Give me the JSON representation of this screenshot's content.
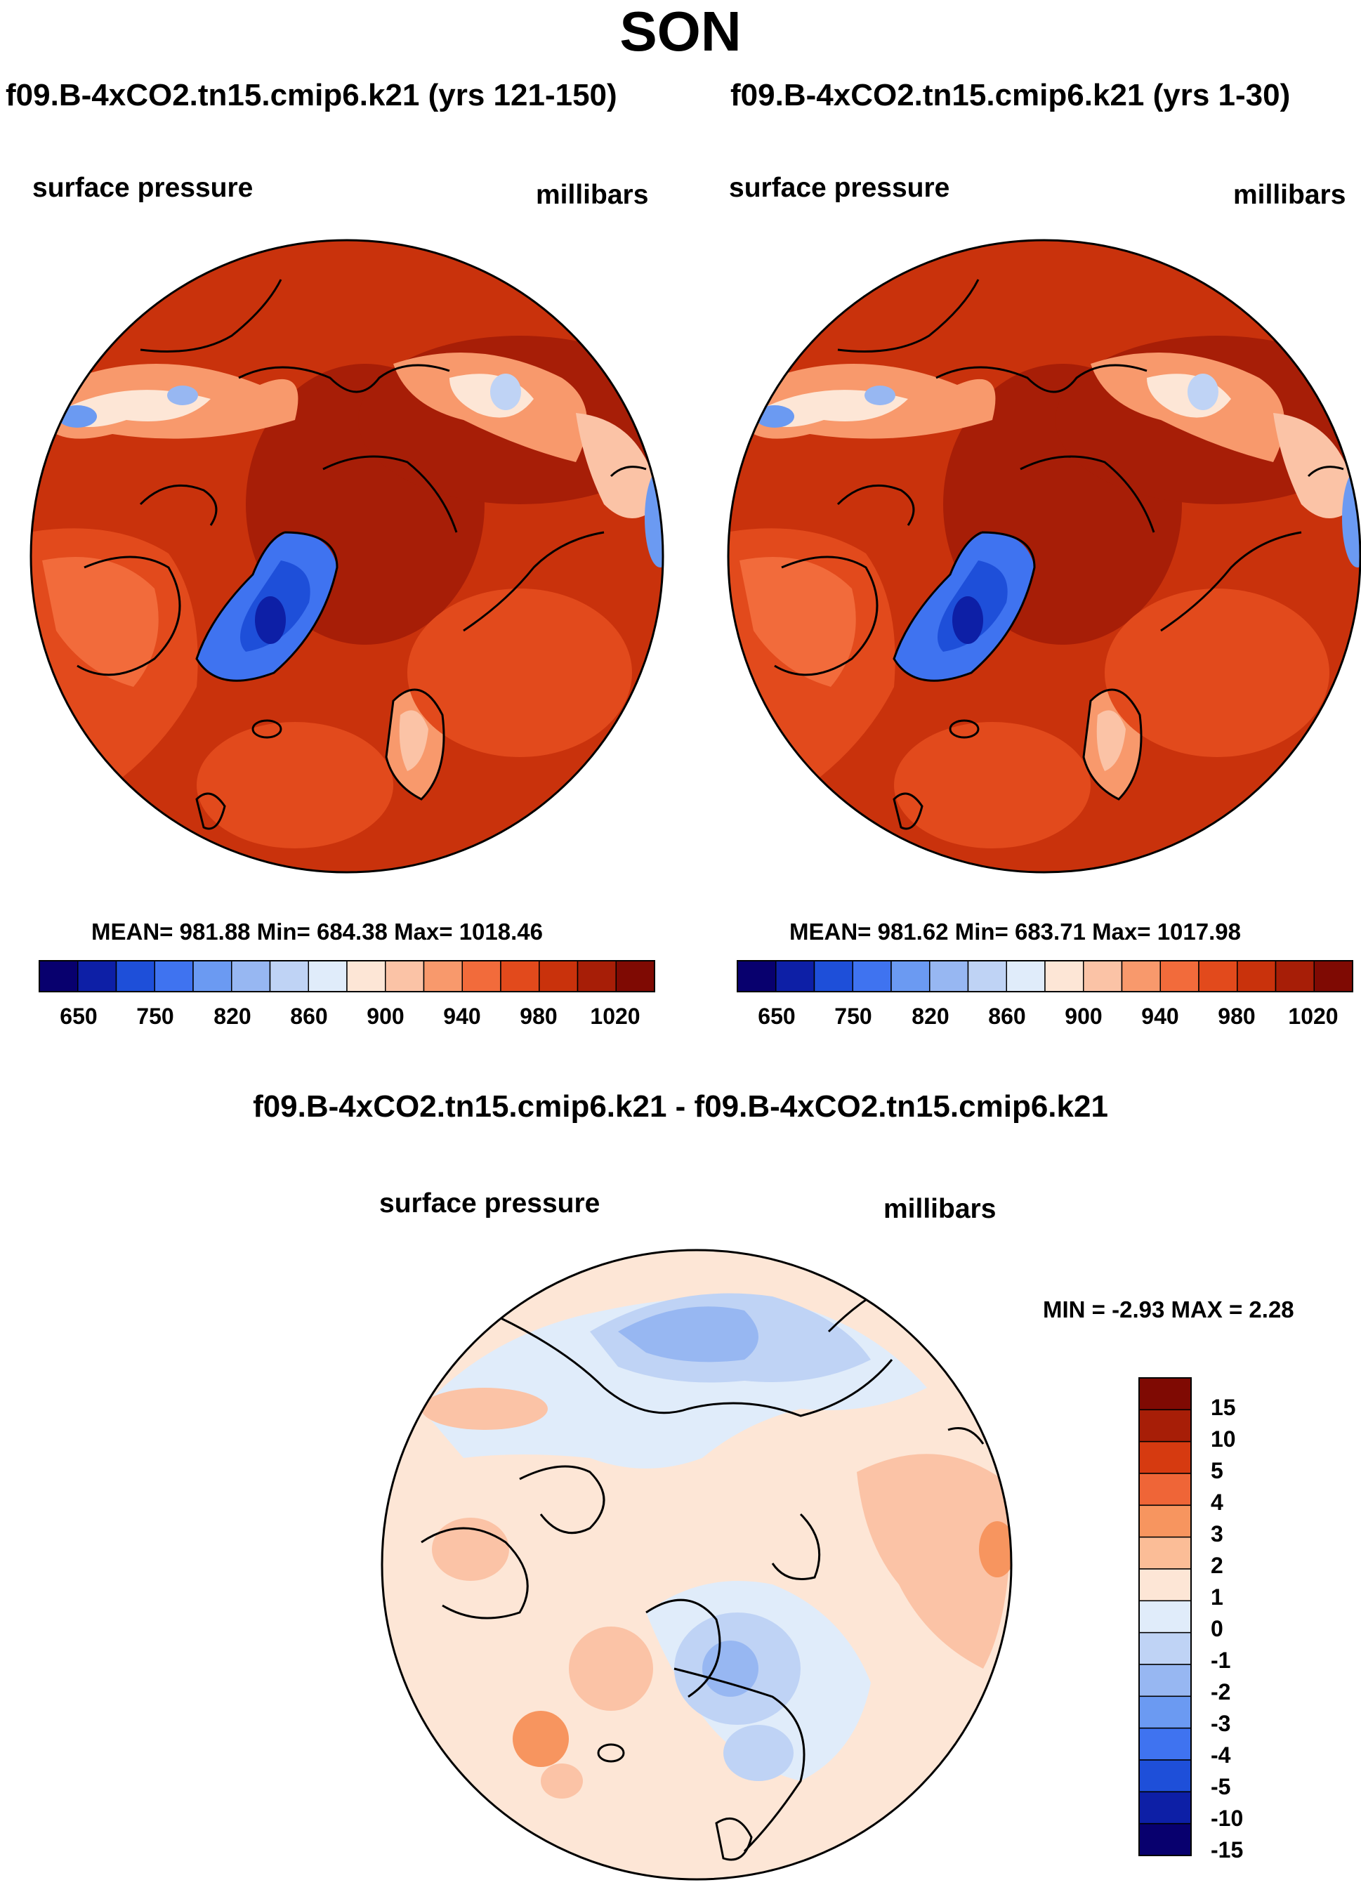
{
  "title": "SON",
  "panels": [
    {
      "case": "f09.B-4xCO2.tn15.cmip6.k21 (yrs 121-150)",
      "variable": "surface pressure",
      "units": "millibars",
      "stats": "MEAN= 981.88  Min= 684.38  Max= 1018.46",
      "colorbar_labels": [
        "650",
        "750",
        "820",
        "860",
        "900",
        "940",
        "980",
        "1020"
      ]
    },
    {
      "case": "f09.B-4xCO2.tn15.cmip6.k21 (yrs 1-30)",
      "variable": "surface pressure",
      "units": "millibars",
      "stats": "MEAN= 981.62  Min= 683.71  Max= 1017.98",
      "colorbar_labels": [
        "650",
        "750",
        "820",
        "860",
        "900",
        "940",
        "980",
        "1020"
      ]
    }
  ],
  "diff": {
    "title": "f09.B-4xCO2.tn15.cmip6.k21 - f09.B-4xCO2.tn15.cmip6.k21",
    "variable": "surface pressure",
    "units": "millibars",
    "stats": "MIN =  -2.93 MAX =   2.28",
    "colorbar_labels": [
      "15",
      "10",
      "5",
      "4",
      "3",
      "2",
      "1",
      "0",
      "-1",
      "-2",
      "-3",
      "-4",
      "-5",
      "-10",
      "-15"
    ]
  },
  "colors": {
    "abs_scale": [
      "#08006e",
      "#0d1fa6",
      "#1e4fd9",
      "#3f73f0",
      "#6b9af2",
      "#97b7f2",
      "#bfd3f5",
      "#e0ecfa",
      "#fde6d6",
      "#fbc3a6",
      "#f8996c",
      "#f26b3b",
      "#e24a1c",
      "#c9320c",
      "#a71e07",
      "#7f0a03"
    ],
    "diff_scale": [
      "#7f0a03",
      "#a71e07",
      "#d63a10",
      "#ef6537",
      "#f7955f",
      "#fbbd97",
      "#fde6d6",
      "#e0ecfa",
      "#bfd3f5",
      "#97b7f2",
      "#6b9af2",
      "#3f73f0",
      "#1e4fd9",
      "#0d1fa6",
      "#08006e"
    ]
  }
}
